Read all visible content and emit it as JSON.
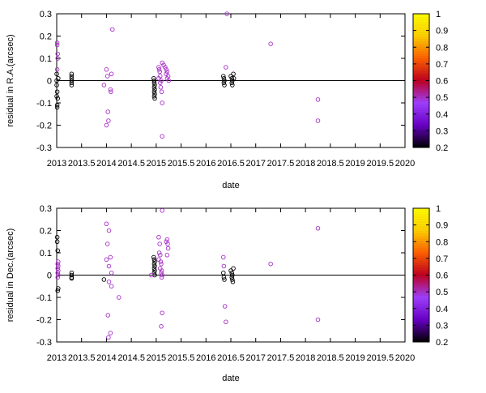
{
  "chart_data": [
    {
      "type": "scatter",
      "ylabel": "residual in R.A.(arcsec)",
      "xlabel": "date",
      "xlim": [
        2013,
        2020
      ],
      "ylim": [
        -0.3,
        0.3
      ],
      "x_ticks": [
        "2013",
        "2013.5",
        "2014",
        "2014.5",
        "2015",
        "2015.5",
        "2016",
        "2016.5",
        "2017",
        "2017.5",
        "2018",
        "2018.5",
        "2019",
        "2019.5",
        "2020"
      ],
      "y_ticks": [
        "0.3",
        "0.2",
        "0.1",
        "0",
        "-0.1",
        "-0.2",
        "-0.3"
      ],
      "zero_line": true,
      "grid": false,
      "colorbar": {
        "range": [
          0.2,
          1
        ],
        "ticks": [
          "1",
          "0.9",
          "0.8",
          "0.7",
          "0.6",
          "0.5",
          "0.4",
          "0.3",
          "0.2"
        ],
        "stops": [
          "#000000",
          "#6a00c8",
          "#a040ff",
          "#c00020",
          "#ff6000",
          "#ffd000",
          "#ffff00"
        ]
      },
      "points": [
        [
          2013.01,
          0.17,
          0.5
        ],
        [
          2013.01,
          0.16,
          0.5
        ],
        [
          2013.02,
          0.12,
          0.5
        ],
        [
          2013.02,
          0.1,
          0.5
        ],
        [
          2013.01,
          0.05,
          0.5
        ],
        [
          2013.0,
          0.03,
          0.2
        ],
        [
          2013.0,
          0.0,
          0.2
        ],
        [
          2013.0,
          -0.02,
          0.2
        ],
        [
          2013.01,
          -0.05,
          0.2
        ],
        [
          2013.0,
          -0.07,
          0.2
        ],
        [
          2013.02,
          -0.08,
          0.2
        ],
        [
          2013.01,
          -0.11,
          0.2
        ],
        [
          2013.01,
          -0.12,
          0.2
        ],
        [
          2013.03,
          0.01,
          0.2
        ],
        [
          2013.3,
          0.03,
          0.2
        ],
        [
          2013.3,
          0.02,
          0.2
        ],
        [
          2013.3,
          0.01,
          0.2
        ],
        [
          2013.3,
          0.0,
          0.2
        ],
        [
          2013.3,
          -0.01,
          0.2
        ],
        [
          2013.3,
          -0.02,
          0.2
        ],
        [
          2013.95,
          -0.02,
          0.5
        ],
        [
          2014.0,
          0.05,
          0.5
        ],
        [
          2014.02,
          0.02,
          0.5
        ],
        [
          2014.03,
          -0.14,
          0.5
        ],
        [
          2014.04,
          -0.18,
          0.5
        ],
        [
          2014.0,
          -0.2,
          0.5
        ],
        [
          2014.08,
          -0.04,
          0.5
        ],
        [
          2014.09,
          -0.05,
          0.5
        ],
        [
          2014.12,
          0.23,
          0.5
        ],
        [
          2014.1,
          0.03,
          0.5
        ],
        [
          2014.95,
          0.01,
          0.2
        ],
        [
          2014.96,
          0.0,
          0.2
        ],
        [
          2014.96,
          -0.01,
          0.2
        ],
        [
          2014.97,
          -0.02,
          0.2
        ],
        [
          2014.96,
          -0.03,
          0.2
        ],
        [
          2014.97,
          -0.04,
          0.2
        ],
        [
          2014.96,
          -0.05,
          0.2
        ],
        [
          2014.97,
          -0.06,
          0.2
        ],
        [
          2014.96,
          -0.07,
          0.2
        ],
        [
          2014.97,
          -0.08,
          0.2
        ],
        [
          2015.05,
          0.06,
          0.5
        ],
        [
          2015.06,
          0.05,
          0.5
        ],
        [
          2015.07,
          0.04,
          0.5
        ],
        [
          2015.08,
          0.02,
          0.5
        ],
        [
          2015.05,
          0.01,
          0.5
        ],
        [
          2015.1,
          0.0,
          0.5
        ],
        [
          2015.08,
          -0.01,
          0.5
        ],
        [
          2015.09,
          -0.03,
          0.5
        ],
        [
          2015.11,
          -0.05,
          0.5
        ],
        [
          2015.12,
          -0.1,
          0.5
        ],
        [
          2015.12,
          -0.25,
          0.5
        ],
        [
          2015.15,
          0.07,
          0.5
        ],
        [
          2015.18,
          0.06,
          0.5
        ],
        [
          2015.2,
          0.05,
          0.5
        ],
        [
          2015.22,
          0.04,
          0.5
        ],
        [
          2015.2,
          0.03,
          0.5
        ],
        [
          2015.24,
          0.02,
          0.5
        ],
        [
          2015.22,
          0.01,
          0.5
        ],
        [
          2015.25,
          0.0,
          0.5
        ],
        [
          2015.12,
          0.08,
          0.5
        ],
        [
          2016.4,
          0.06,
          0.5
        ],
        [
          2016.35,
          0.02,
          0.2
        ],
        [
          2016.36,
          0.01,
          0.2
        ],
        [
          2016.37,
          0.0,
          0.2
        ],
        [
          2016.36,
          -0.01,
          0.2
        ],
        [
          2016.37,
          -0.02,
          0.2
        ],
        [
          2016.5,
          0.02,
          0.2
        ],
        [
          2016.52,
          0.01,
          0.2
        ],
        [
          2016.53,
          0.0,
          0.2
        ],
        [
          2016.52,
          -0.01,
          0.2
        ],
        [
          2016.53,
          -0.02,
          0.2
        ],
        [
          2016.55,
          0.03,
          0.2
        ],
        [
          2016.56,
          0.01,
          0.2
        ],
        [
          2016.42,
          0.3,
          0.5
        ],
        [
          2017.3,
          0.165,
          0.5
        ],
        [
          2018.25,
          -0.085,
          0.5
        ],
        [
          2018.25,
          -0.18,
          0.5
        ]
      ]
    },
    {
      "type": "scatter",
      "ylabel": "residual in Dec.(arcsec)",
      "xlabel": "date",
      "xlim": [
        2013,
        2020
      ],
      "ylim": [
        -0.3,
        0.3
      ],
      "x_ticks": [
        "2013",
        "2013.5",
        "2014",
        "2014.5",
        "2015",
        "2015.5",
        "2016",
        "2016.5",
        "2017",
        "2017.5",
        "2018",
        "2018.5",
        "2019",
        "2019.5",
        "2020"
      ],
      "y_ticks": [
        "0.3",
        "0.2",
        "0.1",
        "0",
        "-0.1",
        "-0.2",
        "-0.3"
      ],
      "zero_line": true,
      "grid": false,
      "colorbar": {
        "range": [
          0.2,
          1
        ],
        "ticks": [
          "1",
          "0.9",
          "0.8",
          "0.7",
          "0.6",
          "0.5",
          "0.4",
          "0.3",
          "0.2"
        ],
        "stops": [
          "#000000",
          "#6a00c8",
          "#a040ff",
          "#c00020",
          "#ff6000",
          "#ffd000",
          "#ffff00"
        ]
      },
      "points": [
        [
          2013.01,
          0.17,
          0.2
        ],
        [
          2013.01,
          0.15,
          0.2
        ],
        [
          2013.02,
          0.11,
          0.2
        ],
        [
          2013.03,
          0.06,
          0.5
        ],
        [
          2013.02,
          0.05,
          0.5
        ],
        [
          2013.03,
          0.04,
          0.5
        ],
        [
          2013.02,
          0.03,
          0.5
        ],
        [
          2013.03,
          0.02,
          0.5
        ],
        [
          2013.02,
          0.01,
          0.5
        ],
        [
          2013.03,
          0.0,
          0.5
        ],
        [
          2013.02,
          -0.01,
          0.5
        ],
        [
          2013.03,
          -0.06,
          0.2
        ],
        [
          2013.02,
          -0.07,
          0.2
        ],
        [
          2013.3,
          0.01,
          0.2
        ],
        [
          2013.3,
          0.0,
          0.2
        ],
        [
          2013.3,
          -0.01,
          0.2
        ],
        [
          2013.3,
          -0.015,
          0.2
        ],
        [
          2013.95,
          -0.02,
          0.2
        ],
        [
          2014.0,
          0.23,
          0.5
        ],
        [
          2014.05,
          0.2,
          0.5
        ],
        [
          2014.02,
          0.14,
          0.5
        ],
        [
          2014.08,
          0.08,
          0.5
        ],
        [
          2014.0,
          0.07,
          0.5
        ],
        [
          2014.05,
          0.04,
          0.5
        ],
        [
          2014.1,
          0.01,
          0.5
        ],
        [
          2014.05,
          -0.03,
          0.5
        ],
        [
          2014.1,
          -0.05,
          0.5
        ],
        [
          2014.03,
          -0.18,
          0.5
        ],
        [
          2014.08,
          -0.26,
          0.5
        ],
        [
          2014.04,
          -0.28,
          0.5
        ],
        [
          2014.25,
          -0.1,
          0.5
        ],
        [
          2014.95,
          0.08,
          0.2
        ],
        [
          2014.96,
          0.07,
          0.2
        ],
        [
          2014.97,
          0.06,
          0.2
        ],
        [
          2014.96,
          0.05,
          0.2
        ],
        [
          2014.97,
          0.04,
          0.2
        ],
        [
          2014.96,
          0.03,
          0.2
        ],
        [
          2014.97,
          0.02,
          0.2
        ],
        [
          2014.96,
          0.01,
          0.2
        ],
        [
          2014.97,
          0.0,
          0.2
        ],
        [
          2014.9,
          0.0,
          0.5
        ],
        [
          2015.05,
          0.17,
          0.5
        ],
        [
          2015.07,
          0.14,
          0.5
        ],
        [
          2015.06,
          0.1,
          0.5
        ],
        [
          2015.08,
          0.09,
          0.5
        ],
        [
          2015.05,
          0.07,
          0.5
        ],
        [
          2015.09,
          0.06,
          0.5
        ],
        [
          2015.1,
          0.05,
          0.5
        ],
        [
          2015.08,
          0.03,
          0.5
        ],
        [
          2015.11,
          0.02,
          0.5
        ],
        [
          2015.1,
          0.01,
          0.5
        ],
        [
          2015.12,
          0.0,
          0.5
        ],
        [
          2015.11,
          -0.01,
          0.5
        ],
        [
          2015.12,
          -0.17,
          0.5
        ],
        [
          2015.1,
          -0.23,
          0.5
        ],
        [
          2015.12,
          0.29,
          0.5
        ],
        [
          2015.22,
          0.16,
          0.5
        ],
        [
          2015.23,
          0.14,
          0.5
        ],
        [
          2015.24,
          0.12,
          0.5
        ],
        [
          2015.22,
          0.09,
          0.5
        ],
        [
          2015.2,
          0.15,
          0.5
        ],
        [
          2016.35,
          0.08,
          0.5
        ],
        [
          2016.36,
          0.04,
          0.5
        ],
        [
          2016.35,
          0.01,
          0.2
        ],
        [
          2016.36,
          -0.01,
          0.2
        ],
        [
          2016.37,
          -0.02,
          0.2
        ],
        [
          2016.38,
          -0.14,
          0.5
        ],
        [
          2016.4,
          -0.21,
          0.5
        ],
        [
          2016.5,
          0.02,
          0.2
        ],
        [
          2016.52,
          0.01,
          0.2
        ],
        [
          2016.53,
          0.0,
          0.2
        ],
        [
          2016.52,
          -0.01,
          0.2
        ],
        [
          2016.53,
          -0.02,
          0.2
        ],
        [
          2016.54,
          -0.03,
          0.2
        ],
        [
          2016.55,
          0.03,
          0.2
        ],
        [
          2017.3,
          0.05,
          0.5
        ],
        [
          2018.25,
          0.21,
          0.5
        ],
        [
          2018.25,
          -0.2,
          0.5
        ]
      ]
    }
  ]
}
